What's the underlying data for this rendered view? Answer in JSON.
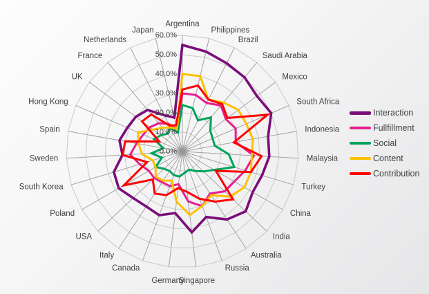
{
  "chart_data": {
    "type": "radar",
    "title": "",
    "units": "percent",
    "categories": [
      "Argentina",
      "Philippines",
      "Brazil",
      "Saudi Arabia",
      "Mexico",
      "South Africa",
      "Indonesia",
      "Malaysia",
      "Turkey",
      "China",
      "India",
      "Australia",
      "Russia",
      "Singapore",
      "Germany",
      "Canada",
      "Italy",
      "USA",
      "Poland",
      "South Korea",
      "Sweden",
      "Spain",
      "Hong Kong",
      "UK",
      "France",
      "Netherlands",
      "Japan"
    ],
    "series": [
      {
        "name": "Interaction",
        "color": "#7B0E7B",
        "values": [
          55,
          53,
          51,
          50,
          48,
          50,
          45,
          45,
          43,
          42,
          45,
          42,
          36,
          42,
          32,
          35,
          34,
          35,
          38,
          37,
          31,
          33,
          31,
          30,
          28,
          21,
          18
        ]
      },
      {
        "name": "Fullfillment",
        "color": "#E61E8F",
        "values": [
          30,
          30,
          28,
          31,
          28,
          30,
          28,
          37,
          34,
          31,
          30,
          26,
          30,
          26,
          17,
          19,
          19,
          20,
          20,
          23,
          27,
          24,
          22,
          21,
          19,
          16,
          12
        ]
      },
      {
        "name": "Social",
        "color": "#00A35C",
        "values": [
          24,
          23,
          18,
          23,
          18,
          17,
          17,
          24,
          28,
          19,
          15,
          12,
          10,
          11,
          13,
          13,
          12,
          13,
          16,
          11,
          16,
          10,
          16,
          14,
          12,
          14,
          10
        ]
      },
      {
        "name": "Content",
        "color": "#FFC000",
        "values": [
          40,
          40,
          30,
          33,
          36,
          36,
          37,
          36,
          37,
          37,
          34,
          27,
          30,
          33,
          26,
          16,
          18,
          19,
          16,
          16,
          21,
          23,
          25,
          19,
          16,
          14,
          12
        ]
      },
      {
        "name": "Contribution",
        "color": "#FE0000",
        "values": [
          32,
          35,
          30,
          32,
          29,
          48,
          27,
          41,
          37,
          20,
          36,
          31,
          26,
          21,
          19,
          24,
          26,
          21,
          35,
          19,
          31,
          30,
          13,
          26,
          25,
          15,
          14
        ]
      }
    ],
    "axis": {
      "min": 0,
      "max": 60,
      "step": 10,
      "tick_labels": [
        "0.0%",
        "10.0%",
        "20.0%",
        "30.0%",
        "40.0%",
        "50.0%",
        "60.0%"
      ]
    },
    "grid": true,
    "legend_position": "right",
    "colors": {
      "grid_ring": "#c9c9c9",
      "spoke": "#a3a3a3",
      "label": "#3f3f3f",
      "hub": "#8f8f8f"
    }
  }
}
